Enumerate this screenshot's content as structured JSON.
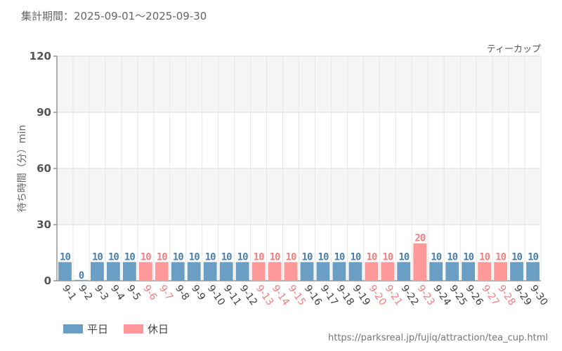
{
  "header": {
    "period_text": "集計期間：2025-09-01～2025-09-30"
  },
  "legend": {
    "weekday_label": "平日",
    "holiday_label": "休日"
  },
  "source_url": "https://parksreal.jp/fujiq/attraction/tea_cup.html",
  "colors": {
    "weekday": "#6a9ec4",
    "holiday": "#ff9999",
    "holiday_text": "#f08080"
  },
  "chart_data": {
    "type": "bar",
    "title": "ティーカップ",
    "ylabel": "待ち時間（分）min",
    "xlabel": "",
    "ylim": [
      0,
      120
    ],
    "yticks": [
      0,
      30,
      60,
      90,
      120
    ],
    "categories": [
      "9-1",
      "9-2",
      "9-3",
      "9-4",
      "9-5",
      "9-6",
      "9-7",
      "9-8",
      "9-9",
      "9-10",
      "9-11",
      "9-12",
      "9-13",
      "9-14",
      "9-15",
      "9-16",
      "9-17",
      "9-18",
      "9-19",
      "9-20",
      "9-21",
      "9-22",
      "9-23",
      "9-24",
      "9-25",
      "9-26",
      "9-27",
      "9-28",
      "9-29",
      "9-30"
    ],
    "values": [
      10,
      0,
      10,
      10,
      10,
      10,
      10,
      10,
      10,
      10,
      10,
      10,
      10,
      10,
      10,
      10,
      10,
      10,
      10,
      10,
      10,
      10,
      20,
      10,
      10,
      10,
      10,
      10,
      10,
      10
    ],
    "day_type": [
      "weekday",
      "weekday",
      "weekday",
      "weekday",
      "weekday",
      "holiday",
      "holiday",
      "weekday",
      "weekday",
      "weekday",
      "weekday",
      "weekday",
      "holiday",
      "holiday",
      "holiday",
      "weekday",
      "weekday",
      "weekday",
      "weekday",
      "holiday",
      "holiday",
      "weekday",
      "holiday",
      "weekday",
      "weekday",
      "weekday",
      "holiday",
      "holiday",
      "weekday",
      "weekday"
    ],
    "series": [
      {
        "name": "平日",
        "key": "weekday"
      },
      {
        "name": "休日",
        "key": "holiday"
      }
    ]
  }
}
